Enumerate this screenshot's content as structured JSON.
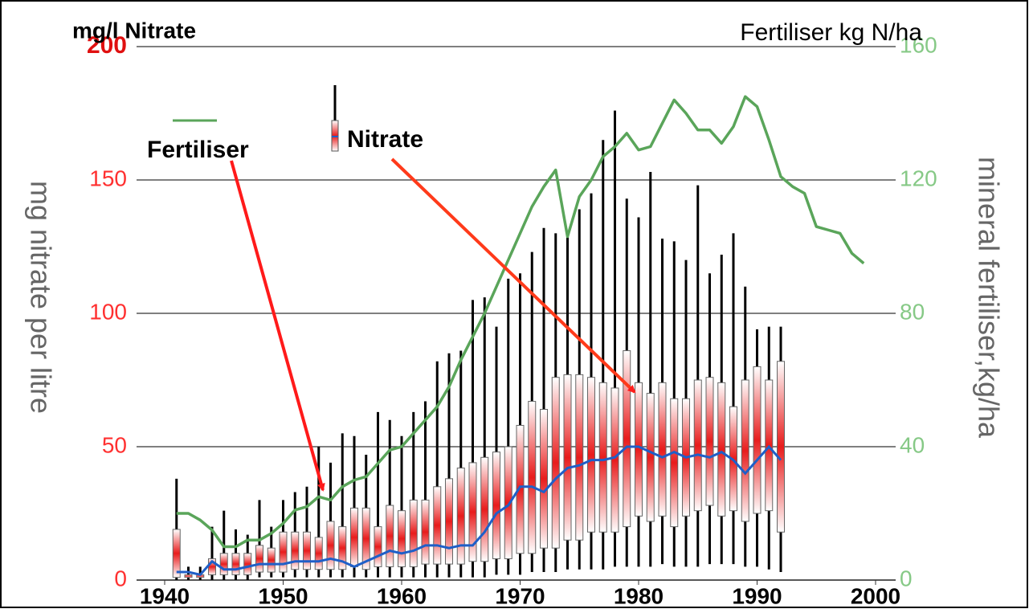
{
  "chart_data": {
    "type": "box",
    "y_unit_label": "mg/l  Nitrate",
    "y2_unit_label": "Fertiliser kg N/ha",
    "ylabel": "mg nitrate per litre",
    "y2label": "mineral fertiliser,kg/ha",
    "xlim": [
      1940,
      2000
    ],
    "xticks": [
      1940,
      1950,
      1960,
      1970,
      1980,
      1990,
      2000
    ],
    "ylim": [
      0,
      200
    ],
    "yticks": [
      0,
      50,
      100,
      150,
      200
    ],
    "y2lim": [
      0,
      160
    ],
    "y2ticks": [
      0,
      40,
      80,
      120,
      160
    ],
    "grid": true,
    "series": [
      {
        "name": "Nitrate",
        "type": "box",
        "color": "#e81c1c",
        "median_color": "#1f5fc8",
        "x": [
          1941,
          1942,
          1943,
          1944,
          1945,
          1946,
          1947,
          1948,
          1949,
          1950,
          1951,
          1952,
          1953,
          1954,
          1955,
          1956,
          1957,
          1958,
          1959,
          1960,
          1961,
          1962,
          1963,
          1964,
          1965,
          1966,
          1967,
          1968,
          1969,
          1970,
          1971,
          1972,
          1973,
          1974,
          1975,
          1976,
          1977,
          1978,
          1979,
          1980,
          1981,
          1982,
          1983,
          1984,
          1985,
          1986,
          1987,
          1988,
          1989,
          1990,
          1991,
          1992
        ],
        "whisker_high": [
          38,
          5,
          5,
          20,
          26,
          19,
          17,
          30,
          20,
          30,
          33,
          35,
          50,
          44,
          55,
          54,
          47,
          63,
          60,
          54,
          63,
          67,
          82,
          85,
          86,
          105,
          106,
          95,
          113,
          115,
          123,
          132,
          130,
          130,
          139,
          145,
          165,
          176,
          143,
          136,
          153,
          128,
          127,
          120,
          148,
          115,
          122,
          130,
          110,
          94,
          95,
          95
        ],
        "q3": [
          19,
          2,
          2,
          8,
          10,
          10,
          10,
          13,
          12,
          18,
          18,
          18,
          16,
          22,
          20,
          27,
          27,
          20,
          28,
          26,
          30,
          30,
          35,
          38,
          42,
          44,
          46,
          48,
          50,
          58,
          67,
          64,
          76,
          77,
          77,
          76,
          74,
          72,
          86,
          74,
          70,
          74,
          68,
          68,
          75,
          76,
          74,
          65,
          75,
          80,
          75,
          82
        ],
        "median": [
          3,
          3,
          2,
          7,
          4,
          4,
          5,
          6,
          6,
          6,
          7,
          7,
          7,
          8,
          7,
          5,
          7,
          9,
          11,
          10,
          11,
          13,
          13,
          12,
          13,
          13,
          18,
          25,
          28,
          35,
          35,
          33,
          38,
          42,
          43,
          45,
          45,
          46,
          50,
          50,
          48,
          46,
          48,
          46,
          47,
          46,
          48,
          45,
          40,
          45,
          50,
          45
        ],
        "q1": [
          1,
          1,
          1,
          2,
          2,
          2,
          2,
          3,
          3,
          3,
          4,
          4,
          4,
          4,
          4,
          5,
          4,
          5,
          5,
          5,
          5,
          6,
          6,
          6,
          6,
          7,
          7,
          8,
          8,
          10,
          10,
          12,
          12,
          15,
          15,
          18,
          18,
          18,
          20,
          24,
          22,
          24,
          20,
          24,
          26,
          28,
          24,
          26,
          22,
          25,
          26,
          18
        ],
        "whisker_low": [
          0,
          0,
          0,
          0,
          0,
          0,
          0,
          1,
          1,
          1,
          1,
          1,
          1,
          1,
          1,
          1,
          1,
          1,
          1,
          1,
          1,
          1,
          1,
          1,
          1,
          1,
          1,
          2,
          2,
          2,
          3,
          3,
          3,
          4,
          4,
          4,
          4,
          5,
          5,
          5,
          5,
          6,
          5,
          5,
          5,
          6,
          6,
          6,
          5,
          5,
          4,
          3
        ]
      },
      {
        "name": "Fertiliser",
        "type": "line",
        "color": "#5aa55a",
        "axis": "y2",
        "x": [
          1941,
          1942,
          1943,
          1944,
          1945,
          1946,
          1947,
          1948,
          1949,
          1950,
          1951,
          1952,
          1953,
          1954,
          1955,
          1956,
          1957,
          1958,
          1959,
          1960,
          1961,
          1962,
          1963,
          1964,
          1965,
          1966,
          1967,
          1968,
          1969,
          1970,
          1971,
          1972,
          1973,
          1974,
          1975,
          1976,
          1977,
          1978,
          1979,
          1980,
          1981,
          1982,
          1983,
          1984,
          1985,
          1986,
          1987,
          1988,
          1989,
          1990,
          1991,
          1992,
          1993,
          1994,
          1995,
          1996,
          1997,
          1998,
          1999
        ],
        "values": [
          20,
          20,
          18,
          15,
          10,
          10,
          12,
          12,
          14,
          17,
          21,
          22,
          25,
          24,
          28,
          30,
          31,
          35,
          39,
          40,
          44,
          48,
          52,
          58,
          66,
          73,
          80,
          88,
          96,
          104,
          112,
          118,
          123,
          103,
          115,
          120,
          127,
          130,
          134,
          129,
          130,
          137,
          144,
          140,
          135,
          135,
          131,
          136,
          145,
          142,
          132,
          121,
          118,
          116,
          106,
          105,
          104,
          98,
          95
        ]
      }
    ]
  }
}
